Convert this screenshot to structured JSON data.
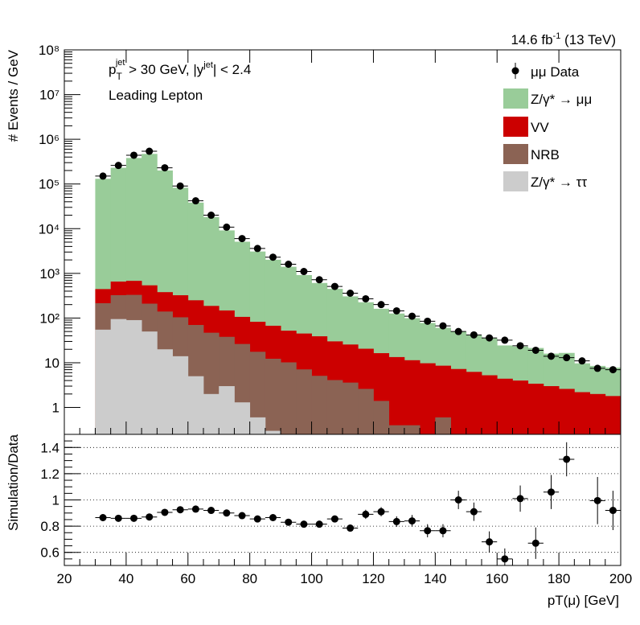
{
  "figure": {
    "lumi_label": "14.6 fb⁻¹ (13 TeV)",
    "cut_label": "pᵀʲᵉᵗ > 30 GeV,  |yʲᵉᵗ| < 2.4",
    "cut_label_parts": {
      "pt_base": "p",
      "pt_sub": "T",
      "pt_sup": "jet",
      "pt_rest": " > 30 GeV,  |y",
      "y_sup": "jet",
      "y_rest": "| < 2.4"
    },
    "region_label": "Leading Lepton",
    "lumi_parts": {
      "base": "14.6 fb",
      "sup": "-1",
      "rest": " (13 TeV)"
    }
  },
  "chart_data": [
    {
      "type": "bar",
      "stacked": true,
      "log_y": true,
      "ylabel": "# Events / GeV",
      "ylim": [
        0.25,
        100000000
      ],
      "xlim": [
        20,
        200
      ],
      "y_tick_labels": [
        "1",
        "10",
        "10²",
        "10³",
        "10⁴",
        "10⁵",
        "10⁶",
        "10⁷",
        "10⁸"
      ],
      "y_ticks": [
        1,
        10,
        100,
        1000,
        10000,
        100000,
        1000000,
        10000000,
        100000000
      ],
      "bin_edges": [
        30,
        35,
        40,
        45,
        50,
        55,
        60,
        65,
        70,
        75,
        80,
        85,
        90,
        95,
        100,
        105,
        110,
        115,
        120,
        125,
        130,
        135,
        140,
        145,
        150,
        155,
        160,
        165,
        170,
        175,
        180,
        185,
        190,
        195,
        200
      ],
      "series": [
        {
          "name": "Z/γ* → ττ",
          "color": "#cccccc",
          "values": [
            55,
            95,
            90,
            50,
            20,
            14,
            5,
            2,
            3,
            1.3,
            0.6,
            0.3,
            0.2,
            0.1,
            0.1,
            0.1,
            0.1,
            0.1,
            0.1,
            0.1,
            0.1,
            0.1,
            0.1,
            0.1,
            0.1,
            0.1,
            0.1,
            0.1,
            0.1,
            0.1,
            0.1,
            0.1,
            0.1,
            0.1
          ]
        },
        {
          "name": "NRB",
          "color": "#8b6354",
          "values": [
            160,
            230,
            240,
            160,
            120,
            90,
            65,
            45,
            35,
            25,
            17,
            12,
            10,
            7,
            5,
            4,
            3.5,
            2.5,
            1.3,
            0.3,
            0.3,
            0.15,
            0.5,
            0.15,
            0.15,
            0.15,
            0.1,
            0.1,
            0.1,
            0.1,
            0.1,
            0.1,
            0.1,
            0.1
          ]
        },
        {
          "name": "VV",
          "color": "#cc0000",
          "values": [
            230,
            330,
            350,
            330,
            240,
            220,
            180,
            140,
            110,
            80,
            65,
            55,
            42,
            38,
            34,
            26,
            22,
            18,
            15,
            13,
            11,
            9.5,
            8,
            7,
            6,
            5,
            4.2,
            3.8,
            3.2,
            2.8,
            2.4,
            2.0,
            1.8,
            1.6
          ]
        },
        {
          "name": "Z/γ* → μμ",
          "color": "#99cc99",
          "values": [
            130000,
            230000,
            380000,
            470000,
            200000,
            82000,
            38000,
            18000,
            9000,
            5000,
            3000,
            1950,
            1350,
            870,
            570,
            420,
            280,
            205,
            145,
            113,
            88,
            68,
            52,
            42,
            35,
            30,
            20,
            19,
            18,
            13,
            14,
            7.5,
            6.5,
            6
          ]
        }
      ],
      "data": {
        "name": "μμ Data",
        "x": [
          32.5,
          37.5,
          42.5,
          47.5,
          52.5,
          57.5,
          62.5,
          67.5,
          72.5,
          77.5,
          82.5,
          87.5,
          92.5,
          97.5,
          102.5,
          107.5,
          112.5,
          117.5,
          122.5,
          127.5,
          132.5,
          137.5,
          142.5,
          147.5,
          152.5,
          157.5,
          162.5,
          167.5,
          172.5,
          177.5,
          182.5,
          187.5,
          192.5,
          197.5
        ],
        "y": [
          150000,
          260000,
          440000,
          540000,
          230000,
          90000,
          42000,
          20000,
          10800,
          6000,
          3600,
          2300,
          1600,
          1100,
          720,
          510,
          360,
          270,
          200,
          145,
          110,
          85,
          67,
          50,
          42,
          36,
          32,
          24,
          19,
          14,
          13,
          11,
          7.5,
          7
        ]
      }
    },
    {
      "type": "scatter",
      "ylabel": "Simulation/Data",
      "xlabel": "pT(μ) [GeV]",
      "xlim": [
        20,
        200
      ],
      "ylim": [
        0.5,
        1.5
      ],
      "y_tick_labels": [
        "0.6",
        "0.8",
        "1",
        "1.2",
        "1.4"
      ],
      "y_ticks": [
        0.6,
        0.8,
        1.0,
        1.2,
        1.4
      ],
      "x_tick_labels": [
        "20",
        "40",
        "60",
        "80",
        "100",
        "120",
        "140",
        "160",
        "180",
        "200"
      ],
      "x_ticks": [
        20,
        40,
        60,
        80,
        100,
        120,
        140,
        160,
        180,
        200
      ],
      "grid": true,
      "x": [
        32.5,
        37.5,
        42.5,
        47.5,
        52.5,
        57.5,
        62.5,
        67.5,
        72.5,
        77.5,
        82.5,
        87.5,
        92.5,
        97.5,
        102.5,
        107.5,
        112.5,
        117.5,
        122.5,
        127.5,
        132.5,
        137.5,
        142.5,
        147.5,
        152.5,
        157.5,
        162.5,
        167.5,
        172.5,
        177.5,
        182.5,
        192.5,
        197.5
      ],
      "y": [
        0.865,
        0.86,
        0.86,
        0.87,
        0.905,
        0.925,
        0.93,
        0.92,
        0.9,
        0.88,
        0.855,
        0.865,
        0.83,
        0.815,
        0.815,
        0.855,
        0.785,
        0.89,
        0.91,
        0.835,
        0.84,
        0.765,
        0.765,
        1.0,
        0.91,
        0.68,
        0.55,
        1.01,
        0.67,
        1.06,
        1.31,
        0.995,
        0.92
      ],
      "y_err": [
        0.01,
        0.01,
        0.01,
        0.01,
        0.01,
        0.01,
        0.01,
        0.01,
        0.01,
        0.01,
        0.015,
        0.015,
        0.015,
        0.02,
        0.02,
        0.025,
        0.025,
        0.035,
        0.035,
        0.04,
        0.045,
        0.05,
        0.05,
        0.07,
        0.07,
        0.08,
        0.08,
        0.1,
        0.12,
        0.13,
        0.13,
        0.18,
        0.15
      ]
    }
  ]
}
